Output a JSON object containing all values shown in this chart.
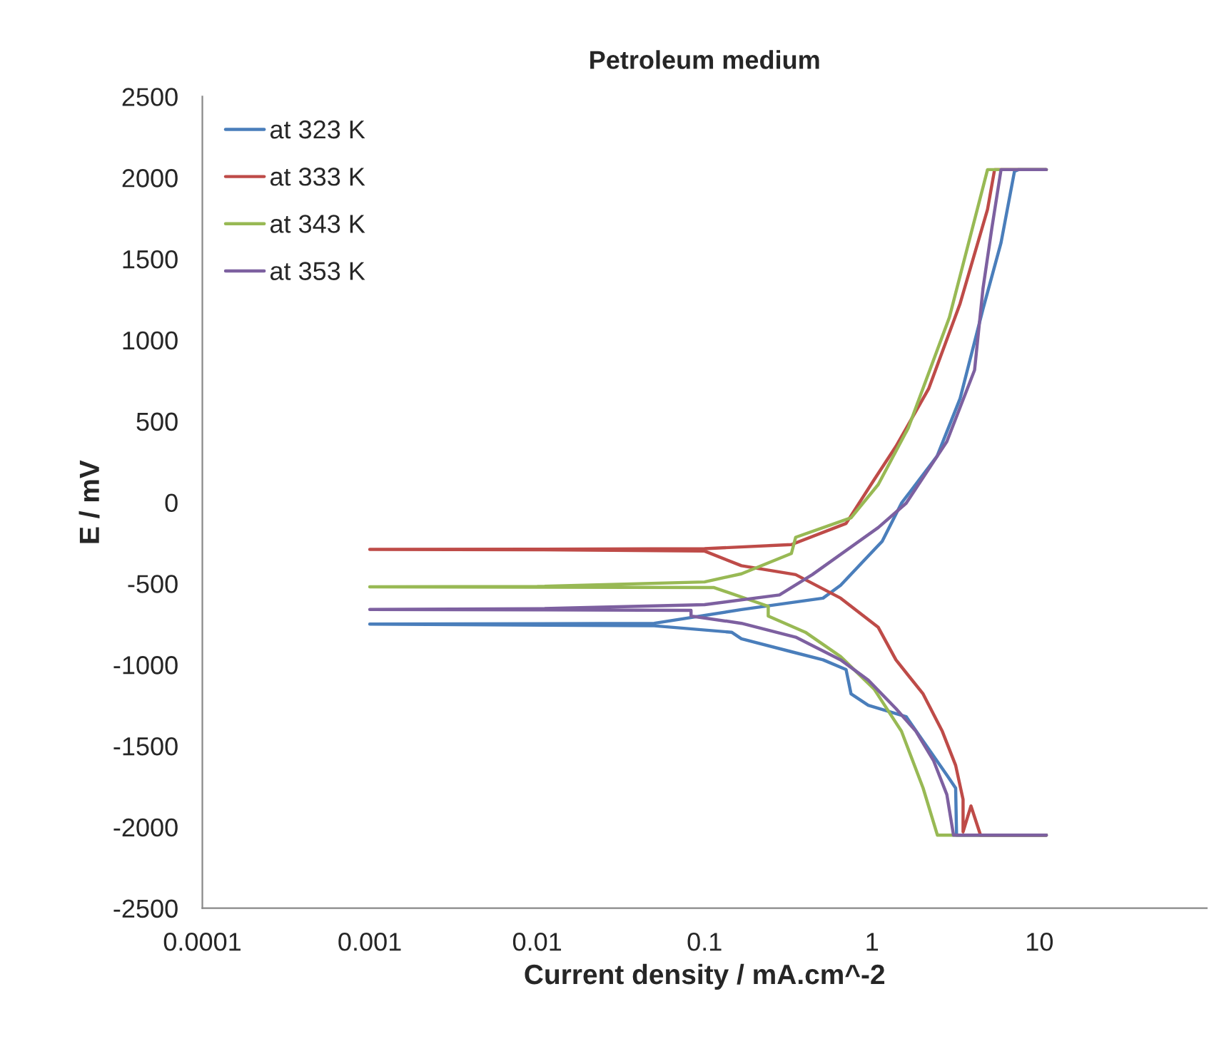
{
  "chart_data": {
    "type": "line",
    "title": "Petroleum medium",
    "xlabel": "Current density / mA.cm^-2",
    "ylabel": "E / mV",
    "log": "x",
    "xlim": [
      0.0001,
      100
    ],
    "xticks": [
      0.0001,
      0.001,
      0.01,
      0.1,
      1,
      10
    ],
    "ylim": [
      -2500,
      2500
    ],
    "yticks": [
      -2500,
      -2000,
      -1500,
      -1000,
      -500,
      0,
      500,
      1000,
      1500,
      2000,
      2500
    ],
    "grid": false,
    "legend": "top left",
    "marker": "none",
    "line_style": "solid",
    "series": [
      {
        "name": "at 323 K",
        "color": "#4a7ebb",
        "x": [
          11,
          3.2,
          3.16,
          2.8,
          2.02,
          1.6,
          0.95,
          0.75,
          0.7,
          0.51,
          0.33,
          0.166,
          0.145,
          0.05,
          0.001,
          0.05,
          0.166,
          0.51,
          0.65,
          0.95,
          1.15,
          1.5,
          2.45,
          3.36,
          4.6,
          5.9,
          7.1,
          7.5,
          11
        ],
        "values": [
          -2050,
          -2050,
          -1760,
          -1680,
          -1470,
          -1320,
          -1250,
          -1180,
          -1030,
          -970,
          -920,
          -840,
          -800,
          -760,
          -750,
          -745,
          -660,
          -590,
          -510,
          -330,
          -240,
          -5,
          285,
          640,
          1190,
          1600,
          2040,
          2050,
          2050
        ]
      },
      {
        "name": "at 333 K",
        "color": "#be4b48",
        "x": [
          11,
          4.45,
          3.9,
          3.5,
          3.5,
          3.16,
          2.63,
          2.02,
          1.39,
          1.09,
          0.65,
          0.35,
          0.166,
          0.1,
          0.01,
          0.001,
          0.01,
          0.1,
          0.33,
          0.7,
          1.03,
          1.39,
          2.18,
          3.36,
          4.9,
          5.4,
          11
        ],
        "values": [
          -2050,
          -2050,
          -1870,
          -2030,
          -1830,
          -1620,
          -1410,
          -1180,
          -970,
          -770,
          -590,
          -445,
          -390,
          -300,
          -292,
          -290,
          -288,
          -285,
          -260,
          -130,
          140,
          345,
          700,
          1225,
          1805,
          2050,
          2050
        ]
      },
      {
        "name": "at 343 K",
        "color": "#98b954",
        "x": [
          11,
          2.46,
          2.02,
          1.5,
          1.03,
          0.65,
          0.4,
          0.24,
          0.24,
          0.114,
          0.01,
          0.001,
          0.01,
          0.1,
          0.166,
          0.33,
          0.35,
          0.75,
          1.09,
          1.65,
          2.9,
          4.9,
          11
        ],
        "values": [
          -2050,
          -2050,
          -1760,
          -1410,
          -1150,
          -950,
          -800,
          -700,
          -640,
          -525,
          -522,
          -520,
          -518,
          -490,
          -440,
          -315,
          -215,
          -95,
          110,
          460,
          1140,
          2050,
          2050
        ]
      },
      {
        "name": "at 353 K",
        "color": "#7d60a0",
        "x": [
          11,
          3.07,
          2.8,
          2.33,
          1.83,
          1.39,
          0.95,
          0.65,
          0.35,
          0.166,
          0.083,
          0.083,
          0.01,
          0.001,
          0.01,
          0.1,
          0.28,
          0.44,
          1.09,
          1.6,
          2.8,
          4.1,
          4.6,
          5.2,
          5.9,
          11
        ],
        "values": [
          -2050,
          -2050,
          -1800,
          -1590,
          -1410,
          -1270,
          -1095,
          -970,
          -830,
          -745,
          -700,
          -665,
          -662,
          -660,
          -655,
          -630,
          -570,
          -445,
          -155,
          -5,
          375,
          815,
          1315,
          1690,
          2050,
          2050
        ]
      }
    ]
  }
}
